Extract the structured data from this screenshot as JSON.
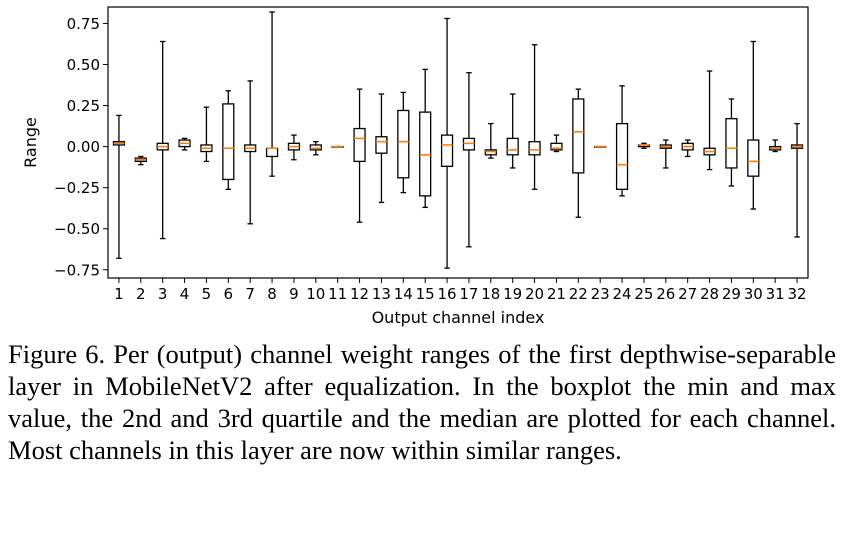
{
  "chart_data": {
    "type": "boxplot",
    "title": "",
    "xlabel": "Output channel index",
    "ylabel": "Range",
    "ylim": [
      -0.8,
      0.85
    ],
    "yticks": [
      -0.75,
      -0.5,
      -0.25,
      0.0,
      0.25,
      0.5,
      0.75
    ],
    "ytick_labels": [
      "−0.75",
      "−0.50",
      "−0.25",
      "0.00",
      "0.25",
      "0.50",
      "0.75"
    ],
    "categories": [
      "1",
      "2",
      "3",
      "4",
      "5",
      "6",
      "7",
      "8",
      "9",
      "10",
      "11",
      "12",
      "13",
      "14",
      "15",
      "16",
      "17",
      "18",
      "19",
      "20",
      "21",
      "22",
      "23",
      "24",
      "25",
      "26",
      "27",
      "28",
      "29",
      "30",
      "31",
      "32"
    ],
    "grid": false,
    "colors": {
      "box": "#000000",
      "median": "#ff7f0e"
    },
    "boxes": [
      {
        "min": -0.68,
        "q1": 0.01,
        "median": 0.02,
        "q3": 0.03,
        "max": 0.19
      },
      {
        "min": -0.11,
        "q1": -0.09,
        "median": -0.08,
        "q3": -0.07,
        "max": -0.06
      },
      {
        "min": -0.56,
        "q1": -0.02,
        "median": 0.0,
        "q3": 0.02,
        "max": 0.64
      },
      {
        "min": -0.02,
        "q1": 0.0,
        "median": 0.02,
        "q3": 0.04,
        "max": 0.05
      },
      {
        "min": -0.09,
        "q1": -0.03,
        "median": -0.01,
        "q3": 0.01,
        "max": 0.24
      },
      {
        "min": -0.26,
        "q1": -0.2,
        "median": -0.01,
        "q3": 0.26,
        "max": 0.34
      },
      {
        "min": -0.47,
        "q1": -0.03,
        "median": -0.01,
        "q3": 0.01,
        "max": 0.4
      },
      {
        "min": -0.18,
        "q1": -0.06,
        "median": -0.01,
        "q3": -0.01,
        "max": 0.82
      },
      {
        "min": -0.08,
        "q1": -0.02,
        "median": 0.0,
        "q3": 0.02,
        "max": 0.07
      },
      {
        "min": -0.05,
        "q1": -0.02,
        "median": -0.01,
        "q3": 0.01,
        "max": 0.03
      },
      {
        "min": 0.0,
        "q1": 0.0,
        "median": 0.0,
        "q3": 0.0,
        "max": 0.0
      },
      {
        "min": -0.46,
        "q1": -0.09,
        "median": 0.05,
        "q3": 0.11,
        "max": 0.35
      },
      {
        "min": -0.34,
        "q1": -0.04,
        "median": 0.03,
        "q3": 0.06,
        "max": 0.32
      },
      {
        "min": -0.28,
        "q1": -0.19,
        "median": 0.03,
        "q3": 0.22,
        "max": 0.33
      },
      {
        "min": -0.37,
        "q1": -0.3,
        "median": -0.05,
        "q3": 0.21,
        "max": 0.47
      },
      {
        "min": -0.74,
        "q1": -0.12,
        "median": 0.01,
        "q3": 0.07,
        "max": 0.78
      },
      {
        "min": -0.61,
        "q1": -0.02,
        "median": 0.02,
        "q3": 0.05,
        "max": 0.45
      },
      {
        "min": -0.07,
        "q1": -0.05,
        "median": -0.03,
        "q3": -0.02,
        "max": 0.14
      },
      {
        "min": -0.13,
        "q1": -0.05,
        "median": -0.02,
        "q3": 0.05,
        "max": 0.32
      },
      {
        "min": -0.26,
        "q1": -0.05,
        "median": -0.02,
        "q3": 0.03,
        "max": 0.62
      },
      {
        "min": -0.03,
        "q1": -0.02,
        "median": -0.01,
        "q3": 0.02,
        "max": 0.07
      },
      {
        "min": -0.43,
        "q1": -0.16,
        "median": 0.09,
        "q3": 0.29,
        "max": 0.35
      },
      {
        "min": 0.0,
        "q1": 0.0,
        "median": 0.0,
        "q3": 0.0,
        "max": 0.0
      },
      {
        "min": -0.3,
        "q1": -0.26,
        "median": -0.11,
        "q3": 0.14,
        "max": 0.37
      },
      {
        "min": -0.01,
        "q1": 0.0,
        "median": 0.01,
        "q3": 0.01,
        "max": 0.02
      },
      {
        "min": -0.13,
        "q1": -0.01,
        "median": 0.0,
        "q3": 0.01,
        "max": 0.04
      },
      {
        "min": -0.06,
        "q1": -0.02,
        "median": 0.0,
        "q3": 0.02,
        "max": 0.04
      },
      {
        "min": -0.14,
        "q1": -0.05,
        "median": -0.03,
        "q3": -0.01,
        "max": 0.46
      },
      {
        "min": -0.24,
        "q1": -0.13,
        "median": -0.01,
        "q3": 0.17,
        "max": 0.29
      },
      {
        "min": -0.38,
        "q1": -0.18,
        "median": -0.09,
        "q3": 0.04,
        "max": 0.64
      },
      {
        "min": -0.03,
        "q1": -0.02,
        "median": -0.01,
        "q3": 0.0,
        "max": 0.04
      },
      {
        "min": -0.55,
        "q1": -0.01,
        "median": 0.0,
        "q3": 0.01,
        "max": 0.14
      }
    ]
  },
  "caption": "Figure 6. Per (output) channel weight ranges of the first depthwise-separable layer in MobileNetV2 after equalization. In the boxplot the min and max value, the 2nd and 3rd quartile and the median are plotted for each channel. Most channels in this layer are now within similar ranges."
}
